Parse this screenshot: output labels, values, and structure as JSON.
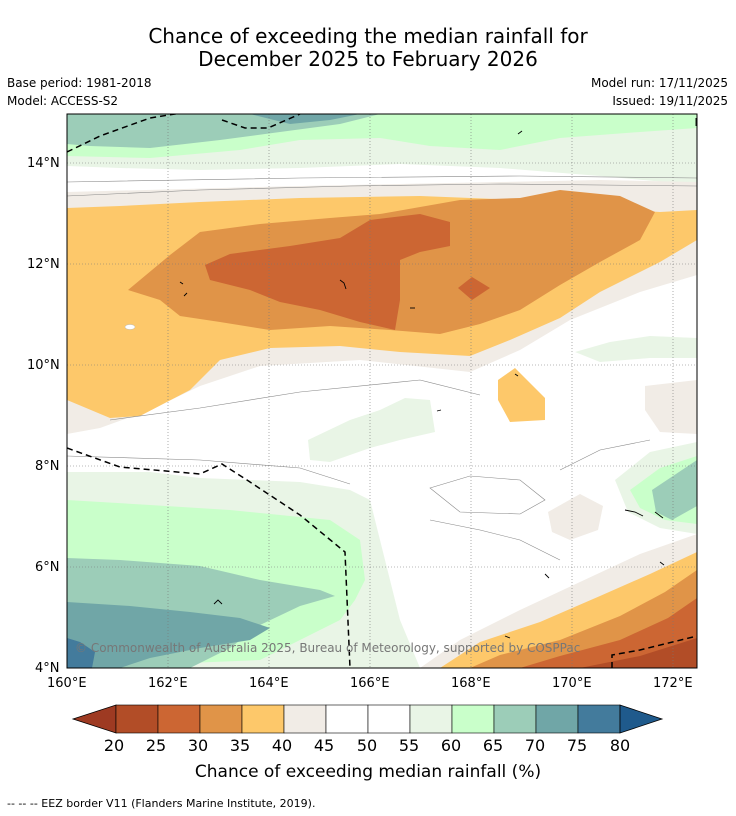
{
  "title": {
    "line1": "Chance of exceeding the median rainfall for",
    "line2": "December 2025 to February 2026"
  },
  "meta": {
    "base_period": "Base period: 1981-2018",
    "model": "Model: ACCESS-S2",
    "model_run": "Model run: 17/11/2025",
    "issued": "Issued: 19/11/2025"
  },
  "axes": {
    "y_ticks": [
      "14°N",
      "12°N",
      "10°N",
      "8°N",
      "6°N",
      "4°N"
    ],
    "x_ticks": [
      "160°E",
      "162°E",
      "164°E",
      "166°E",
      "168°E",
      "170°E",
      "172°E"
    ]
  },
  "colorbar": {
    "labels": [
      "20",
      "25",
      "30",
      "35",
      "40",
      "45",
      "50",
      "55",
      "60",
      "65",
      "70",
      "75",
      "80"
    ],
    "colors": [
      "#b24d27",
      "#cc6633",
      "#e09448",
      "#fdc86a",
      "#f1ece6",
      "#ffffff",
      "#ffffff",
      "#e9f5e6",
      "#c9ffca",
      "#9ccdb8",
      "#70a6a7",
      "#437b9c"
    ],
    "low_color": "#9e3a22",
    "high_color": "#1f5a8c",
    "title": "Chance of exceeding median rainfall (%)"
  },
  "copyright": "© Commonwealth of Australia 2025, Bureau of Meteorology, supported by COSPPac",
  "footnote": "--  --  -- EEZ border V11 (Flanders Marine Institute, 2019)."
}
